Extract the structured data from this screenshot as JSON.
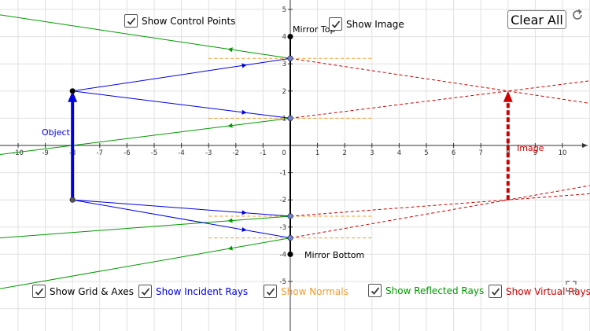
{
  "controls": {
    "show_control_points": "Show Control Points",
    "show_image": "Show Image",
    "clear_all": "Clear All",
    "show_grid_axes": "Show Grid & Axes",
    "show_incident_rays": "Show Incident Rays",
    "show_normals": "Show Normals",
    "show_reflected_rays": "Show Reflected Rays",
    "show_virtual_rays": "Show Virtual Rays"
  },
  "labels": {
    "mirror_top": "Mirror Top",
    "mirror_bottom": "Mirror Bottom",
    "object": "Object",
    "image": "Image"
  },
  "axes": {
    "x_ticks": [
      "-10",
      "-9",
      "-8",
      "-7",
      "-6",
      "-5",
      "-4",
      "-3",
      "-2",
      "-1",
      "0",
      "1",
      "2",
      "3",
      "4",
      "5",
      "6",
      "7",
      "8",
      "9",
      "10"
    ],
    "y_ticks": [
      "5",
      "4",
      "3",
      "2",
      "1",
      "-1",
      "-2",
      "-3",
      "-4",
      "-5"
    ]
  },
  "colors": {
    "incident": "#0000e0",
    "reflected": "#009900",
    "normals": "#f59b2a",
    "virtual": "#cc0000",
    "mirror": "#000000",
    "grid": "#e0e0e0"
  },
  "icons": {
    "reset": "reset-icon",
    "fullscreen": "fullscreen-icon",
    "check": "checkmark-icon"
  }
}
